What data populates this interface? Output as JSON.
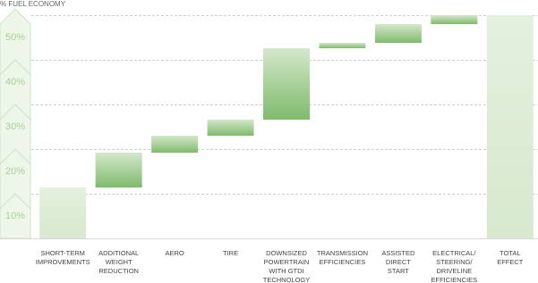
{
  "chart_data": {
    "type": "waterfall",
    "title": "% FUEL ECONOMY",
    "categories": [
      [
        "SHORT-TERM",
        "IMPROVEMENTS"
      ],
      [
        "ADDITIONAL",
        "WEIGHT",
        "REDUCTION"
      ],
      [
        "AERO"
      ],
      [
        "TIRE"
      ],
      [
        "DOWNSIZED",
        "POWERTRAIN",
        "WITH GTDI",
        "TECHNOLOGY"
      ],
      [
        "TRANSMISSION",
        "EFFICIENCIES"
      ],
      [
        "ASSISTED",
        "DIRECT",
        "START"
      ],
      [
        "ELECTRICAL/",
        "STEERING/",
        "DRIVELINE",
        "EFFICIENCIES"
      ],
      [
        "TOTAL",
        "EFFECT"
      ]
    ],
    "values": [
      11.4,
      7.8,
      3.8,
      3.6,
      16,
      1.2,
      4.2,
      2,
      50
    ],
    "color": "#7fba6c",
    "base_color": "#e4f0de",
    "ylim": [
      0,
      50
    ],
    "yticks": [
      {
        "value": 10,
        "label": "10%"
      },
      {
        "value": 20,
        "label": "20%"
      },
      {
        "value": 30,
        "label": "30%"
      },
      {
        "value": 40,
        "label": "40%"
      },
      {
        "value": 50,
        "label": "50%"
      }
    ],
    "grid": true
  }
}
